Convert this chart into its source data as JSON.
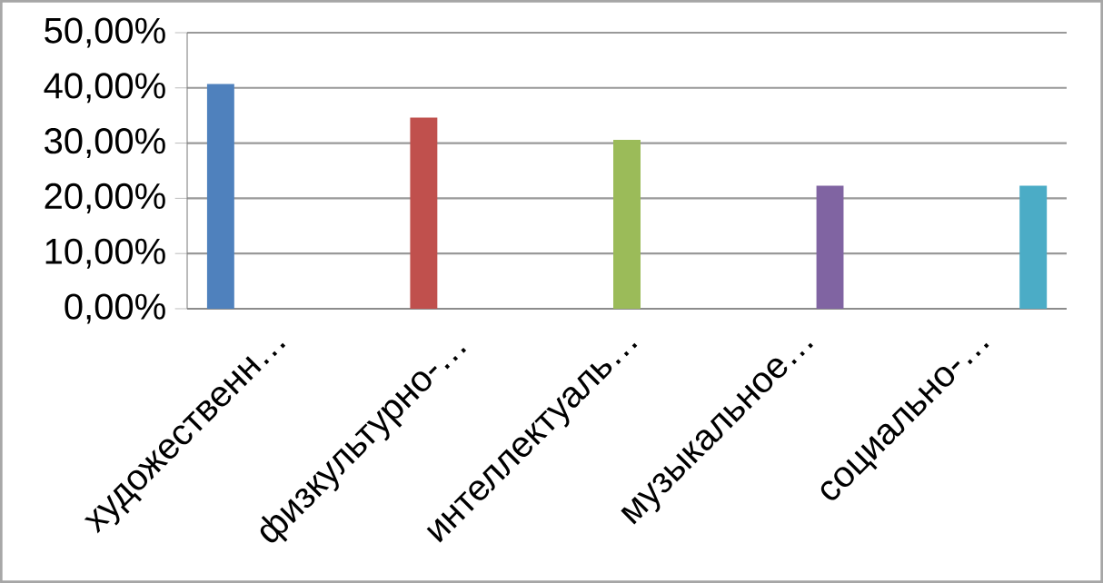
{
  "chart_data": {
    "type": "bar",
    "categories": [
      "художественн…",
      "физкультурно-…",
      "интеллектуаль…",
      "музыкальное…",
      "социально-…"
    ],
    "series": [
      {
        "color": "#4f81bd",
        "values": [
          40.7,
          null,
          null,
          null,
          null
        ]
      },
      {
        "color": "#c0504d",
        "values": [
          null,
          34.6,
          null,
          null,
          null
        ]
      },
      {
        "color": "#9bbb59",
        "values": [
          null,
          null,
          30.6,
          null,
          null
        ]
      },
      {
        "color": "#8064a2",
        "values": [
          null,
          null,
          null,
          22.3,
          null
        ]
      },
      {
        "color": "#4bacc6",
        "values": [
          null,
          null,
          null,
          null,
          22.3
        ]
      }
    ],
    "ylim": [
      0,
      50
    ],
    "yticks": [
      {
        "value": 0,
        "label": "0,00%"
      },
      {
        "value": 10,
        "label": "10,00%"
      },
      {
        "value": 20,
        "label": "20,00%"
      },
      {
        "value": 30,
        "label": "30,00%"
      },
      {
        "value": 40,
        "label": "40,00%"
      },
      {
        "value": 50,
        "label": "50,00%"
      }
    ],
    "grid": true
  }
}
